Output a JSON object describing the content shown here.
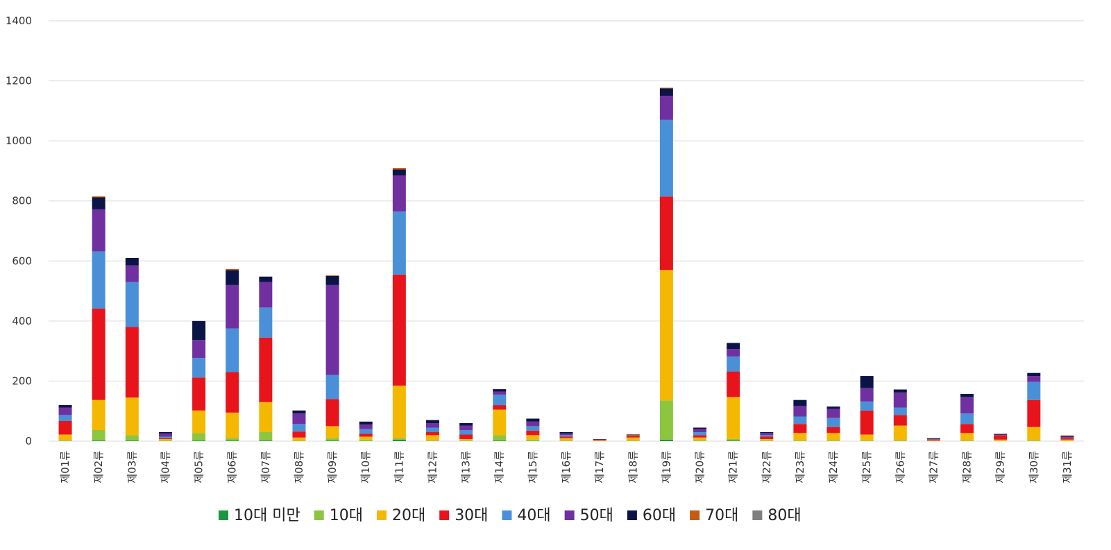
{
  "chart_data": {
    "type": "bar",
    "stacked": true,
    "categories": [
      "제01류",
      "제02류",
      "제03류",
      "제04류",
      "제05류",
      "제06류",
      "제07류",
      "제08류",
      "제09류",
      "제10류",
      "제11류",
      "제12류",
      "제13류",
      "제14류",
      "제15류",
      "제16류",
      "제17류",
      "제18류",
      "제19류",
      "제20류",
      "제21류",
      "제22류",
      "제23류",
      "제24류",
      "제25류",
      "제26류",
      "제27류",
      "제28류",
      "제29류",
      "제30류",
      "제31류"
    ],
    "series": [
      {
        "name": "10대 미만",
        "color": "#1a9641",
        "values": [
          0,
          2,
          2,
          0,
          2,
          2,
          2,
          0,
          2,
          0,
          5,
          0,
          0,
          2,
          0,
          0,
          0,
          0,
          5,
          0,
          2,
          0,
          0,
          0,
          0,
          0,
          0,
          0,
          0,
          0,
          0
        ]
      },
      {
        "name": "10대",
        "color": "#8cc63f",
        "values": [
          2,
          35,
          18,
          2,
          25,
          8,
          28,
          2,
          8,
          5,
          5,
          2,
          2,
          18,
          5,
          2,
          0,
          2,
          130,
          2,
          5,
          2,
          2,
          2,
          2,
          2,
          0,
          2,
          0,
          2,
          0
        ]
      },
      {
        "name": "20대",
        "color": "#f5b800",
        "values": [
          20,
          100,
          125,
          5,
          75,
          85,
          100,
          10,
          40,
          10,
          175,
          18,
          5,
          85,
          15,
          8,
          2,
          10,
          435,
          10,
          140,
          5,
          25,
          25,
          20,
          50,
          2,
          25,
          5,
          45,
          5
        ]
      },
      {
        "name": "30대",
        "color": "#e8141b",
        "values": [
          45,
          305,
          235,
          3,
          110,
          135,
          215,
          20,
          90,
          10,
          370,
          10,
          15,
          15,
          15,
          5,
          2,
          5,
          245,
          8,
          85,
          8,
          30,
          20,
          80,
          35,
          3,
          30,
          15,
          90,
          5
        ]
      },
      {
        "name": "40대",
        "color": "#4a90d9",
        "values": [
          20,
          190,
          150,
          5,
          65,
          145,
          100,
          25,
          80,
          15,
          210,
          15,
          15,
          35,
          15,
          5,
          1,
          1,
          255,
          10,
          50,
          5,
          25,
          30,
          30,
          25,
          1,
          35,
          1,
          60,
          1
        ]
      },
      {
        "name": "50대",
        "color": "#7030a0",
        "values": [
          25,
          140,
          55,
          10,
          60,
          145,
          85,
          35,
          300,
          15,
          120,
          15,
          15,
          10,
          15,
          5,
          1,
          1,
          80,
          10,
          25,
          7,
          35,
          30,
          45,
          50,
          1,
          55,
          1,
          20,
          4
        ]
      },
      {
        "name": "60대",
        "color": "#0a1447",
        "values": [
          8,
          40,
          25,
          5,
          63,
          50,
          18,
          10,
          30,
          10,
          20,
          10,
          8,
          8,
          10,
          5,
          1,
          1,
          25,
          5,
          20,
          3,
          20,
          8,
          40,
          10,
          2,
          10,
          2,
          10,
          2
        ]
      },
      {
        "name": "70대",
        "color": "#c55a11",
        "values": [
          0,
          3,
          0,
          0,
          0,
          3,
          0,
          0,
          2,
          0,
          5,
          0,
          0,
          0,
          0,
          0,
          0,
          3,
          2,
          0,
          0,
          0,
          0,
          0,
          0,
          0,
          1,
          0,
          0,
          0,
          2
        ]
      },
      {
        "name": "80대",
        "color": "#7f7f7f",
        "values": [
          0,
          0,
          0,
          0,
          0,
          0,
          0,
          0,
          0,
          0,
          0,
          0,
          0,
          0,
          0,
          0,
          0,
          0,
          0,
          0,
          0,
          0,
          0,
          0,
          0,
          0,
          0,
          0,
          0,
          0,
          0
        ]
      }
    ],
    "yticks": [
      "0",
      "200",
      "400",
      "600",
      "800",
      "1000",
      "1200",
      "1400"
    ],
    "ylim": [
      0,
      1400
    ],
    "grid": true,
    "legend_position": "bottom"
  }
}
